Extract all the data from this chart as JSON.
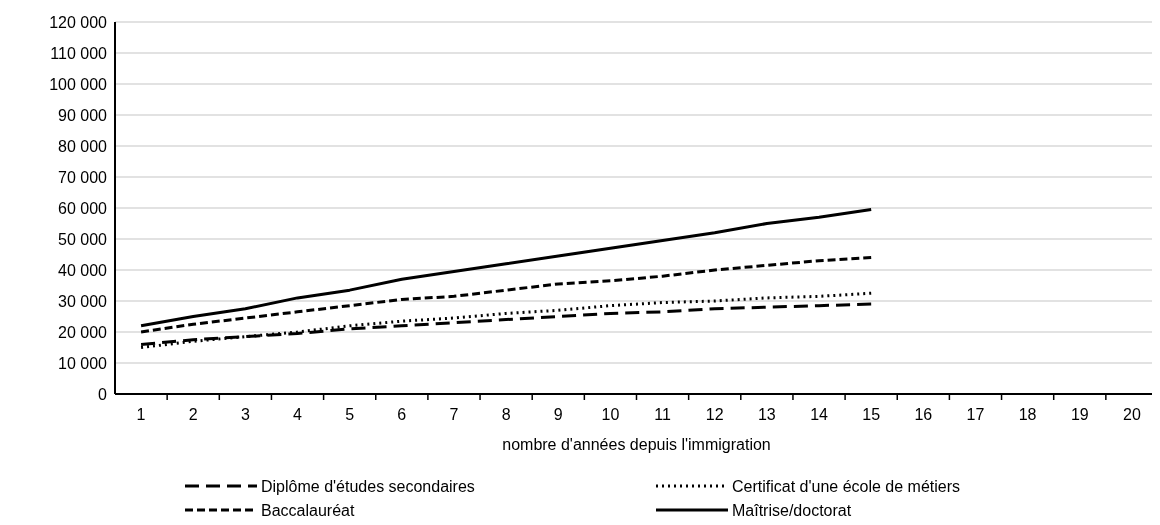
{
  "chart_data": {
    "type": "line",
    "xlabel": "nombre d'années depuis l'immigration",
    "x": [
      1,
      2,
      3,
      4,
      5,
      6,
      7,
      8,
      9,
      10,
      11,
      12,
      13,
      14,
      15
    ],
    "series": [
      {
        "name": "Diplôme d'études secondaires",
        "color": "#000000",
        "line_style": "dashed",
        "values": [
          16000,
          17500,
          18500,
          19500,
          21000,
          22000,
          23000,
          24000,
          25000,
          26000,
          26500,
          27500,
          28000,
          28500,
          29000
        ]
      },
      {
        "name": "Certificat d'une école de métiers",
        "color": "#000000",
        "line_style": "dotted",
        "values": [
          15000,
          17000,
          18500,
          20000,
          22000,
          23500,
          24500,
          26000,
          27000,
          28500,
          29500,
          30000,
          31000,
          31500,
          32500
        ]
      },
      {
        "name": "Baccalauréat",
        "color": "#000000",
        "line_style": "dashed",
        "values": [
          20000,
          22500,
          24500,
          26500,
          28500,
          30500,
          31500,
          33500,
          35500,
          36500,
          38000,
          40000,
          41500,
          43000,
          44000
        ]
      },
      {
        "name": "Maîtrise/doctorat",
        "color": "#000000",
        "line_style": "solid",
        "values": [
          22000,
          25000,
          27500,
          31000,
          33500,
          37000,
          39500,
          42000,
          44500,
          47000,
          49500,
          52000,
          55000,
          57000,
          59500
        ]
      }
    ],
    "xlim": [
      0.5,
      20.5
    ],
    "xticks": [
      1,
      {
        "value": 1.5,
        "label": null
      },
      2,
      {
        "value": 2.5,
        "label": null
      },
      3,
      {
        "value": 3.5,
        "label": null
      },
      4,
      {
        "value": 4.5,
        "label": null
      },
      5,
      {
        "value": 5.5,
        "label": null
      },
      6,
      {
        "value": 6.5,
        "label": null
      },
      7,
      {
        "value": 7.5,
        "label": null
      },
      8,
      {
        "value": 8.5,
        "label": null
      },
      9,
      {
        "value": 9.5,
        "label": null
      },
      10,
      {
        "value": 10.5,
        "label": null
      },
      11,
      {
        "value": 11.5,
        "label": null
      },
      12,
      {
        "value": 12.5,
        "label": null
      },
      13,
      {
        "value": 13.5,
        "label": null
      },
      14,
      {
        "value": 14.5,
        "label": null
      },
      15,
      {
        "value": 15.5,
        "label": null
      },
      16,
      {
        "value": 16.5,
        "label": null
      },
      17,
      {
        "value": 17.5,
        "label": null
      },
      18,
      {
        "value": 18.5,
        "label": null
      },
      19,
      {
        "value": 19.5,
        "label": null
      },
      20
    ],
    "ylim": [
      0,
      120000
    ],
    "yticks": [
      {
        "value": 0,
        "label": "0"
      },
      {
        "value": 10000,
        "label": "10 000"
      },
      {
        "value": 20000,
        "label": "20 000"
      },
      {
        "value": 30000,
        "label": "30 000"
      },
      {
        "value": 40000,
        "label": "40 000"
      },
      {
        "value": 50000,
        "label": "50 000"
      },
      {
        "value": 60000,
        "label": "60 000"
      },
      {
        "value": 70000,
        "label": "70 000"
      },
      {
        "value": 80000,
        "label": "80 000"
      },
      {
        "value": 90000,
        "label": "90 000"
      },
      {
        "value": 100000,
        "label": "100 000"
      },
      {
        "value": 110000,
        "label": "110 000"
      },
      {
        "value": 120000,
        "label": "120 000"
      }
    ],
    "grid": "y",
    "legend": "bottom",
    "marker": "none"
  }
}
